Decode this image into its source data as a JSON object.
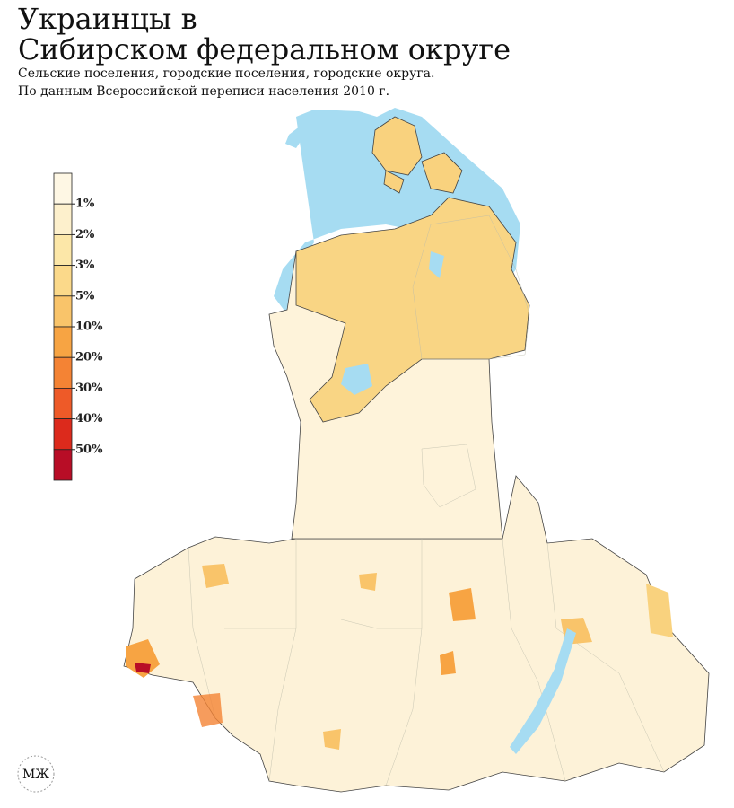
{
  "title": [
    "Украинцы в",
    "Сибирском федеральном округе"
  ],
  "subtitle": [
    "Сельские поселения, городские поселения, городские округа.",
    "По данным Всероссийской переписи населения 2010 г."
  ],
  "legend": {
    "colors": [
      "#fef7e4",
      "#fdf0cc",
      "#fce7a8",
      "#fbd98a",
      "#f9c46a",
      "#f7a443",
      "#f48334",
      "#ee5a28",
      "#dc2a1c",
      "#b80d26"
    ],
    "labels": [
      "1%",
      "2%",
      "3%",
      "5%",
      "10%",
      "20%",
      "30%",
      "40%",
      "50%"
    ]
  },
  "logo": "МЖ"
}
